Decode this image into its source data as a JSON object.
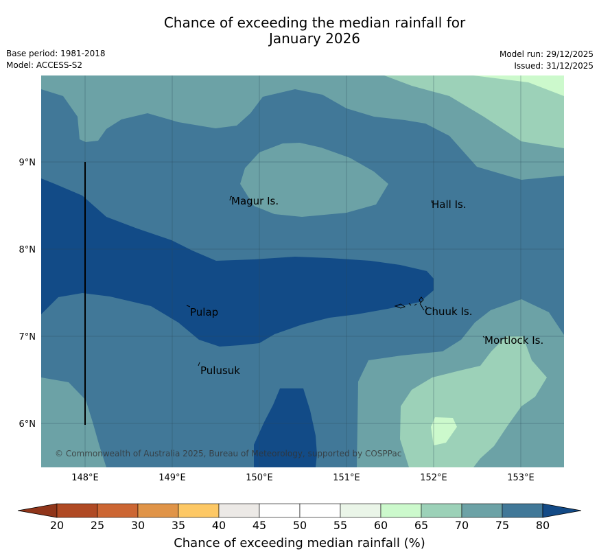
{
  "title": {
    "line1": "Chance of exceeding the median rainfall for",
    "line2": "January 2026"
  },
  "meta": {
    "base_period": "Base period: 1981-2018",
    "model": "Model: ACCESS-S2",
    "model_run": "Model run: 29/12/2025",
    "issued": "Issued: 31/12/2025"
  },
  "map": {
    "lon_labels": [
      "148°E",
      "149°E",
      "150°E",
      "151°E",
      "152°E",
      "153°E"
    ],
    "lat_labels": [
      "9°N",
      "8°N",
      "7°N",
      "6°N"
    ],
    "places": [
      "Magur Is.",
      "Hall Is.",
      "Pulap",
      "Chuuk Is.",
      "Mortlock Is.",
      "Pulusuk"
    ],
    "copyright": "© Commonwealth of Australia 2025, Bureau of Meteorology, supported by COSPPac"
  },
  "colorbar": {
    "ticks": [
      "20",
      "25",
      "30",
      "35",
      "40",
      "45",
      "50",
      "55",
      "60",
      "65",
      "70",
      "75",
      "80"
    ],
    "colors": [
      "#b04a24",
      "#cc6633",
      "#e09448",
      "#fdc865",
      "#ece9e6",
      "#ffffff",
      "#ffffff",
      "#eaf5e8",
      "#ccf9cc",
      "#9cd1b8",
      "#6ca2a6",
      "#417898"
    ],
    "under_color": "#90351a",
    "over_color": "#134a86",
    "label": "Chance of exceeding median rainfall (%)"
  },
  "colors": {
    "c65": "#ccf9cc",
    "c70": "#9cd1b8",
    "c75": "#6ca2a6",
    "c80": "#417898",
    "c85": "#124b87"
  }
}
